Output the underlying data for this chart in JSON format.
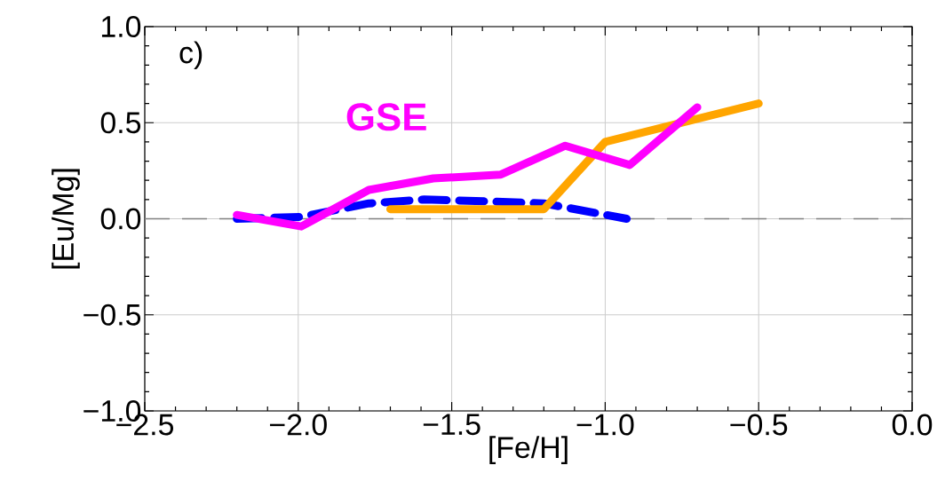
{
  "chart_data": {
    "type": "line",
    "xlabel": "[Fe/H]",
    "ylabel": "[Eu/Mg]",
    "xlim": [
      -2.5,
      0.0
    ],
    "ylim": [
      -1.0,
      1.0
    ],
    "xticks": [
      {
        "value": -2.5,
        "label": "−2.5"
      },
      {
        "value": -2.0,
        "label": "−2.0"
      },
      {
        "value": -1.5,
        "label": "−1.5"
      },
      {
        "value": -1.0,
        "label": "−1.0"
      },
      {
        "value": -0.5,
        "label": "−0.5"
      },
      {
        "value": 0.0,
        "label": "0.0"
      }
    ],
    "yticks": [
      {
        "value": -1.0,
        "label": "−1.0"
      },
      {
        "value": -0.5,
        "label": "−0.5"
      },
      {
        "value": 0.0,
        "label": "0.0"
      },
      {
        "value": 0.5,
        "label": "0.5"
      },
      {
        "value": 1.0,
        "label": "1.0"
      }
    ],
    "grid": true,
    "annotations": [
      "c)"
    ],
    "ref_lines": [
      {
        "axis": "y",
        "value": 0.0,
        "color": "#808080",
        "line_style": "dashed"
      }
    ],
    "series": [
      {
        "color": "#0000ff",
        "line_style": "dashed",
        "x": [
          -2.2,
          -1.99,
          -1.77,
          -1.59,
          -1.37,
          -1.2,
          -0.93
        ],
        "values": [
          0.0,
          0.01,
          0.08,
          0.1,
          0.09,
          0.08,
          0.0
        ]
      },
      {
        "color": "#ffa500",
        "line_style": "solid",
        "x": [
          -1.7,
          -1.2,
          -1.0,
          -0.5
        ],
        "values": [
          0.05,
          0.05,
          0.4,
          0.6
        ]
      },
      {
        "name": "GSE",
        "color": "#ff00ff",
        "line_style": "solid",
        "x": [
          -2.2,
          -1.99,
          -1.77,
          -1.56,
          -1.34,
          -1.13,
          -0.92,
          -0.7
        ],
        "values": [
          0.02,
          -0.04,
          0.15,
          0.21,
          0.23,
          0.38,
          0.28,
          0.58
        ]
      }
    ]
  }
}
